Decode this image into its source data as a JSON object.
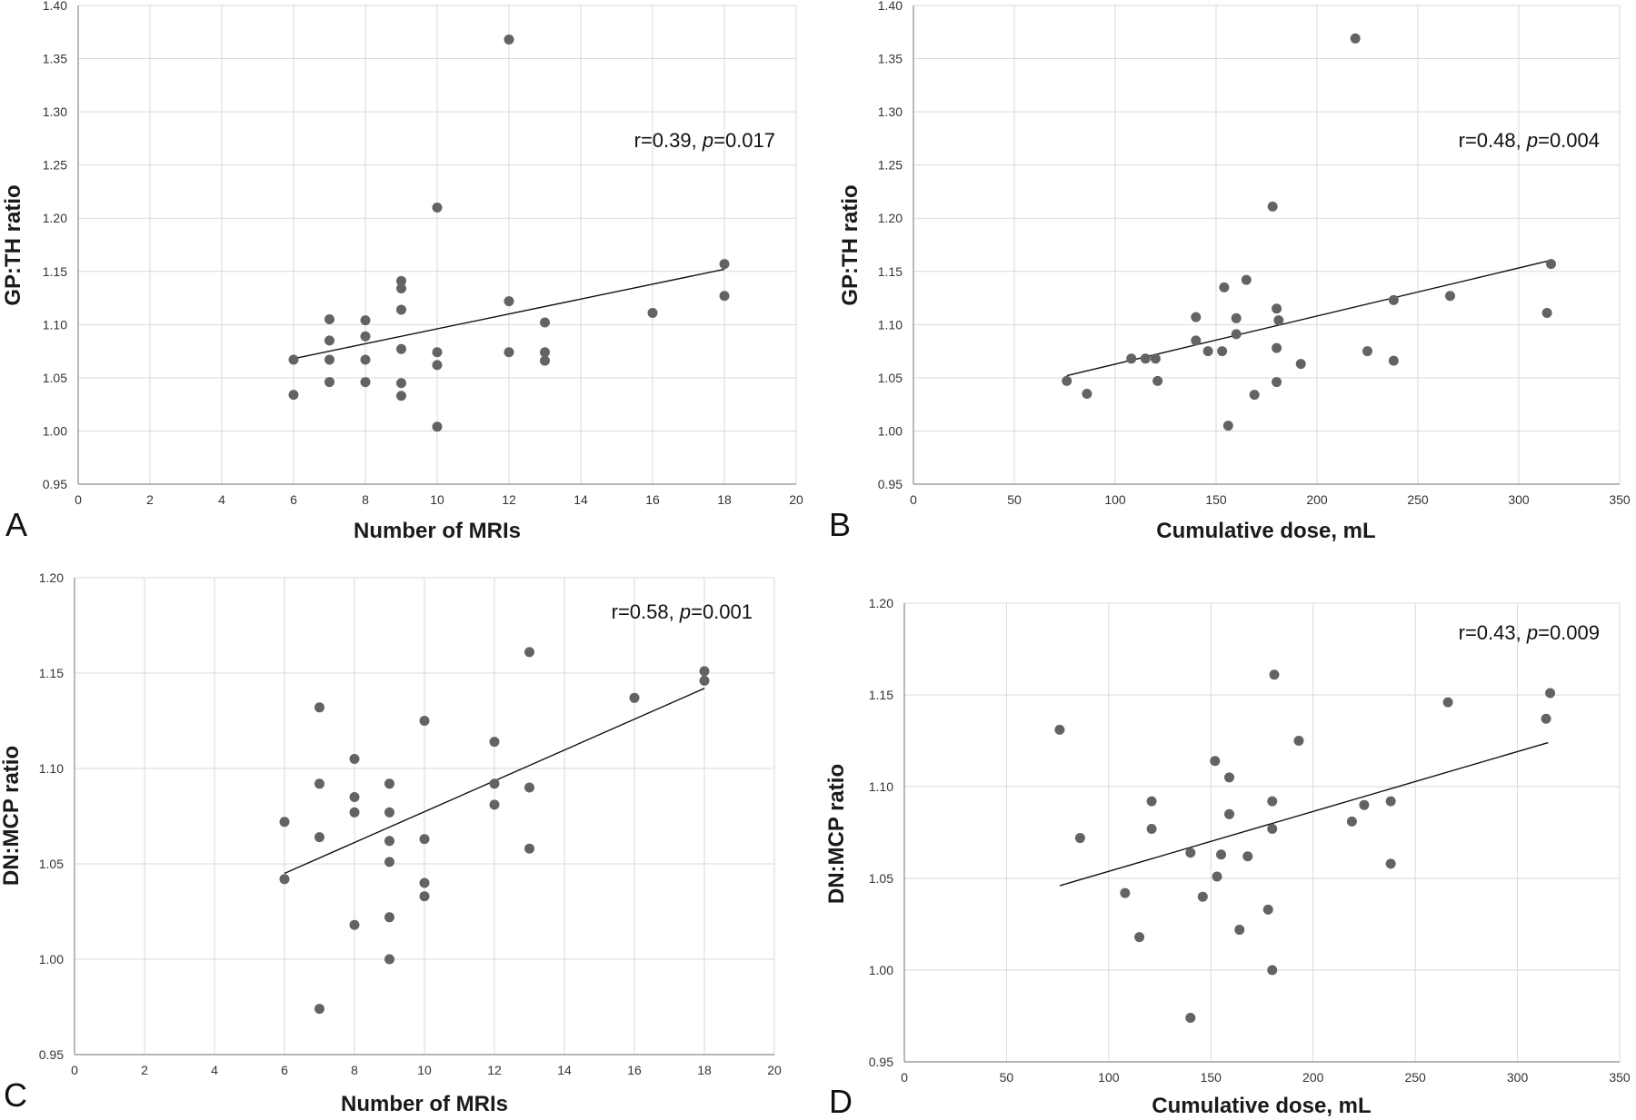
{
  "chart_data": [
    {
      "type": "scatter",
      "panel_label": "A",
      "xlabel": "Number of MRIs",
      "ylabel": "GP:TH ratio",
      "xlim": [
        0,
        20
      ],
      "ylim": [
        0.95,
        1.4
      ],
      "xticks": [
        0,
        2,
        4,
        6,
        8,
        10,
        12,
        14,
        16,
        18,
        20
      ],
      "yticks": [
        0.95,
        1.0,
        1.05,
        1.1,
        1.15,
        1.2,
        1.25,
        1.3,
        1.35,
        1.4
      ],
      "ytick_decimals": 2,
      "grid": true,
      "stat": {
        "r": "r=0.39, ",
        "p_label": "p",
        "p_value": "=0.017"
      },
      "points": [
        {
          "x": 6,
          "y": 1.067
        },
        {
          "x": 6,
          "y": 1.034
        },
        {
          "x": 7,
          "y": 1.105
        },
        {
          "x": 7,
          "y": 1.085
        },
        {
          "x": 7,
          "y": 1.067
        },
        {
          "x": 7,
          "y": 1.046
        },
        {
          "x": 8,
          "y": 1.104
        },
        {
          "x": 8,
          "y": 1.089
        },
        {
          "x": 8,
          "y": 1.067
        },
        {
          "x": 8,
          "y": 1.046
        },
        {
          "x": 9,
          "y": 1.141
        },
        {
          "x": 9,
          "y": 1.134
        },
        {
          "x": 9,
          "y": 1.114
        },
        {
          "x": 9,
          "y": 1.077
        },
        {
          "x": 9,
          "y": 1.045
        },
        {
          "x": 9,
          "y": 1.033
        },
        {
          "x": 10,
          "y": 1.21
        },
        {
          "x": 10,
          "y": 1.074
        },
        {
          "x": 10,
          "y": 1.062
        },
        {
          "x": 10,
          "y": 1.004
        },
        {
          "x": 12,
          "y": 1.368
        },
        {
          "x": 12,
          "y": 1.122
        },
        {
          "x": 12,
          "y": 1.074
        },
        {
          "x": 13,
          "y": 1.102
        },
        {
          "x": 13,
          "y": 1.074
        },
        {
          "x": 13,
          "y": 1.066
        },
        {
          "x": 16,
          "y": 1.111
        },
        {
          "x": 18,
          "y": 1.157
        },
        {
          "x": 18,
          "y": 1.127
        }
      ],
      "trendline": {
        "x": [
          6,
          18
        ],
        "y": [
          1.068,
          1.152
        ]
      }
    },
    {
      "type": "scatter",
      "panel_label": "B",
      "xlabel": "Cumulative dose, mL",
      "ylabel": "GP:TH ratio",
      "xlim": [
        0,
        350
      ],
      "ylim": [
        0.95,
        1.4
      ],
      "xticks": [
        0,
        50,
        100,
        150,
        200,
        250,
        300,
        350
      ],
      "yticks": [
        0.95,
        1.0,
        1.05,
        1.1,
        1.15,
        1.2,
        1.25,
        1.3,
        1.35,
        1.4
      ],
      "ytick_decimals": 2,
      "grid": true,
      "stat": {
        "r": "r=0.48, ",
        "p_label": "p",
        "p_value": "=0.004"
      },
      "points": [
        {
          "x": 76,
          "y": 1.047
        },
        {
          "x": 86,
          "y": 1.035
        },
        {
          "x": 108,
          "y": 1.068
        },
        {
          "x": 115,
          "y": 1.068
        },
        {
          "x": 120,
          "y": 1.068
        },
        {
          "x": 121,
          "y": 1.047
        },
        {
          "x": 140,
          "y": 1.107
        },
        {
          "x": 140,
          "y": 1.085
        },
        {
          "x": 146,
          "y": 1.075
        },
        {
          "x": 153,
          "y": 1.075
        },
        {
          "x": 154,
          "y": 1.135
        },
        {
          "x": 156,
          "y": 1.005
        },
        {
          "x": 160,
          "y": 1.106
        },
        {
          "x": 160,
          "y": 1.091
        },
        {
          "x": 165,
          "y": 1.142
        },
        {
          "x": 169,
          "y": 1.034
        },
        {
          "x": 178,
          "y": 1.211
        },
        {
          "x": 180,
          "y": 1.115
        },
        {
          "x": 181,
          "y": 1.104
        },
        {
          "x": 180,
          "y": 1.078
        },
        {
          "x": 180,
          "y": 1.046
        },
        {
          "x": 192,
          "y": 1.063
        },
        {
          "x": 219,
          "y": 1.369
        },
        {
          "x": 225,
          "y": 1.075
        },
        {
          "x": 238,
          "y": 1.123
        },
        {
          "x": 238,
          "y": 1.066
        },
        {
          "x": 266,
          "y": 1.127
        },
        {
          "x": 314,
          "y": 1.111
        },
        {
          "x": 316,
          "y": 1.157
        }
      ],
      "trendline": {
        "x": [
          76,
          315
        ],
        "y": [
          1.052,
          1.16
        ]
      }
    },
    {
      "type": "scatter",
      "panel_label": "C",
      "xlabel": "Number of MRIs",
      "ylabel": "DN:MCP ratio",
      "xlim": [
        0,
        20
      ],
      "ylim": [
        0.95,
        1.2
      ],
      "xticks": [
        0,
        2,
        4,
        6,
        8,
        10,
        12,
        14,
        16,
        18,
        20
      ],
      "yticks": [
        0.95,
        1.0,
        1.05,
        1.1,
        1.15,
        1.2
      ],
      "ytick_decimals": 2,
      "grid": true,
      "stat": {
        "r": "r=0.58, ",
        "p_label": "p",
        "p_value": "=0.001"
      },
      "points": [
        {
          "x": 6,
          "y": 1.072
        },
        {
          "x": 6,
          "y": 1.042
        },
        {
          "x": 7,
          "y": 1.132
        },
        {
          "x": 7,
          "y": 1.092
        },
        {
          "x": 7,
          "y": 1.064
        },
        {
          "x": 7,
          "y": 0.974
        },
        {
          "x": 8,
          "y": 1.105
        },
        {
          "x": 8,
          "y": 1.085
        },
        {
          "x": 8,
          "y": 1.077
        },
        {
          "x": 8,
          "y": 1.018
        },
        {
          "x": 9,
          "y": 1.092
        },
        {
          "x": 9,
          "y": 1.077
        },
        {
          "x": 9,
          "y": 1.062
        },
        {
          "x": 9,
          "y": 1.051
        },
        {
          "x": 9,
          "y": 1.022
        },
        {
          "x": 9,
          "y": 1.0
        },
        {
          "x": 10,
          "y": 1.125
        },
        {
          "x": 10,
          "y": 1.063
        },
        {
          "x": 10,
          "y": 1.04
        },
        {
          "x": 10,
          "y": 1.033
        },
        {
          "x": 12,
          "y": 1.114
        },
        {
          "x": 12,
          "y": 1.092
        },
        {
          "x": 12,
          "y": 1.081
        },
        {
          "x": 13,
          "y": 1.161
        },
        {
          "x": 13,
          "y": 1.09
        },
        {
          "x": 13,
          "y": 1.058
        },
        {
          "x": 16,
          "y": 1.137
        },
        {
          "x": 18,
          "y": 1.151
        },
        {
          "x": 18,
          "y": 1.146
        }
      ],
      "trendline": {
        "x": [
          6,
          18
        ],
        "y": [
          1.045,
          1.142
        ]
      }
    },
    {
      "type": "scatter",
      "panel_label": "D",
      "xlabel": "Cumulative dose, mL",
      "ylabel": "DN:MCP ratio",
      "xlim": [
        0,
        350
      ],
      "ylim": [
        0.95,
        1.2
      ],
      "xticks": [
        0,
        50,
        100,
        150,
        200,
        250,
        300,
        350
      ],
      "yticks": [
        0.95,
        1.0,
        1.05,
        1.1,
        1.15,
        1.2
      ],
      "ytick_decimals": 2,
      "grid": true,
      "stat": {
        "r": "r=0.43, ",
        "p_label": "p",
        "p_value": "=0.009"
      },
      "points": [
        {
          "x": 76,
          "y": 1.131
        },
        {
          "x": 86,
          "y": 1.072
        },
        {
          "x": 108,
          "y": 1.042
        },
        {
          "x": 115,
          "y": 1.018
        },
        {
          "x": 121,
          "y": 1.092
        },
        {
          "x": 121,
          "y": 1.077
        },
        {
          "x": 140,
          "y": 1.064
        },
        {
          "x": 140,
          "y": 0.974
        },
        {
          "x": 146,
          "y": 1.04
        },
        {
          "x": 152,
          "y": 1.114
        },
        {
          "x": 153,
          "y": 1.051
        },
        {
          "x": 155,
          "y": 1.063
        },
        {
          "x": 159,
          "y": 1.105
        },
        {
          "x": 159,
          "y": 1.085
        },
        {
          "x": 164,
          "y": 1.022
        },
        {
          "x": 168,
          "y": 1.062
        },
        {
          "x": 178,
          "y": 1.033
        },
        {
          "x": 180,
          "y": 1.092
        },
        {
          "x": 180,
          "y": 1.077
        },
        {
          "x": 180,
          "y": 1.0
        },
        {
          "x": 181,
          "y": 1.161
        },
        {
          "x": 193,
          "y": 1.125
        },
        {
          "x": 219,
          "y": 1.081
        },
        {
          "x": 225,
          "y": 1.09
        },
        {
          "x": 238,
          "y": 1.092
        },
        {
          "x": 238,
          "y": 1.058
        },
        {
          "x": 266,
          "y": 1.146
        },
        {
          "x": 314,
          "y": 1.137
        },
        {
          "x": 316,
          "y": 1.151
        }
      ],
      "trendline": {
        "x": [
          76,
          315
        ],
        "y": [
          1.046,
          1.124
        ]
      }
    }
  ],
  "colors": {
    "point": "#636363",
    "grid": "#d9d9d9",
    "axis": "#8c8c8c",
    "trendline": "#111111"
  }
}
